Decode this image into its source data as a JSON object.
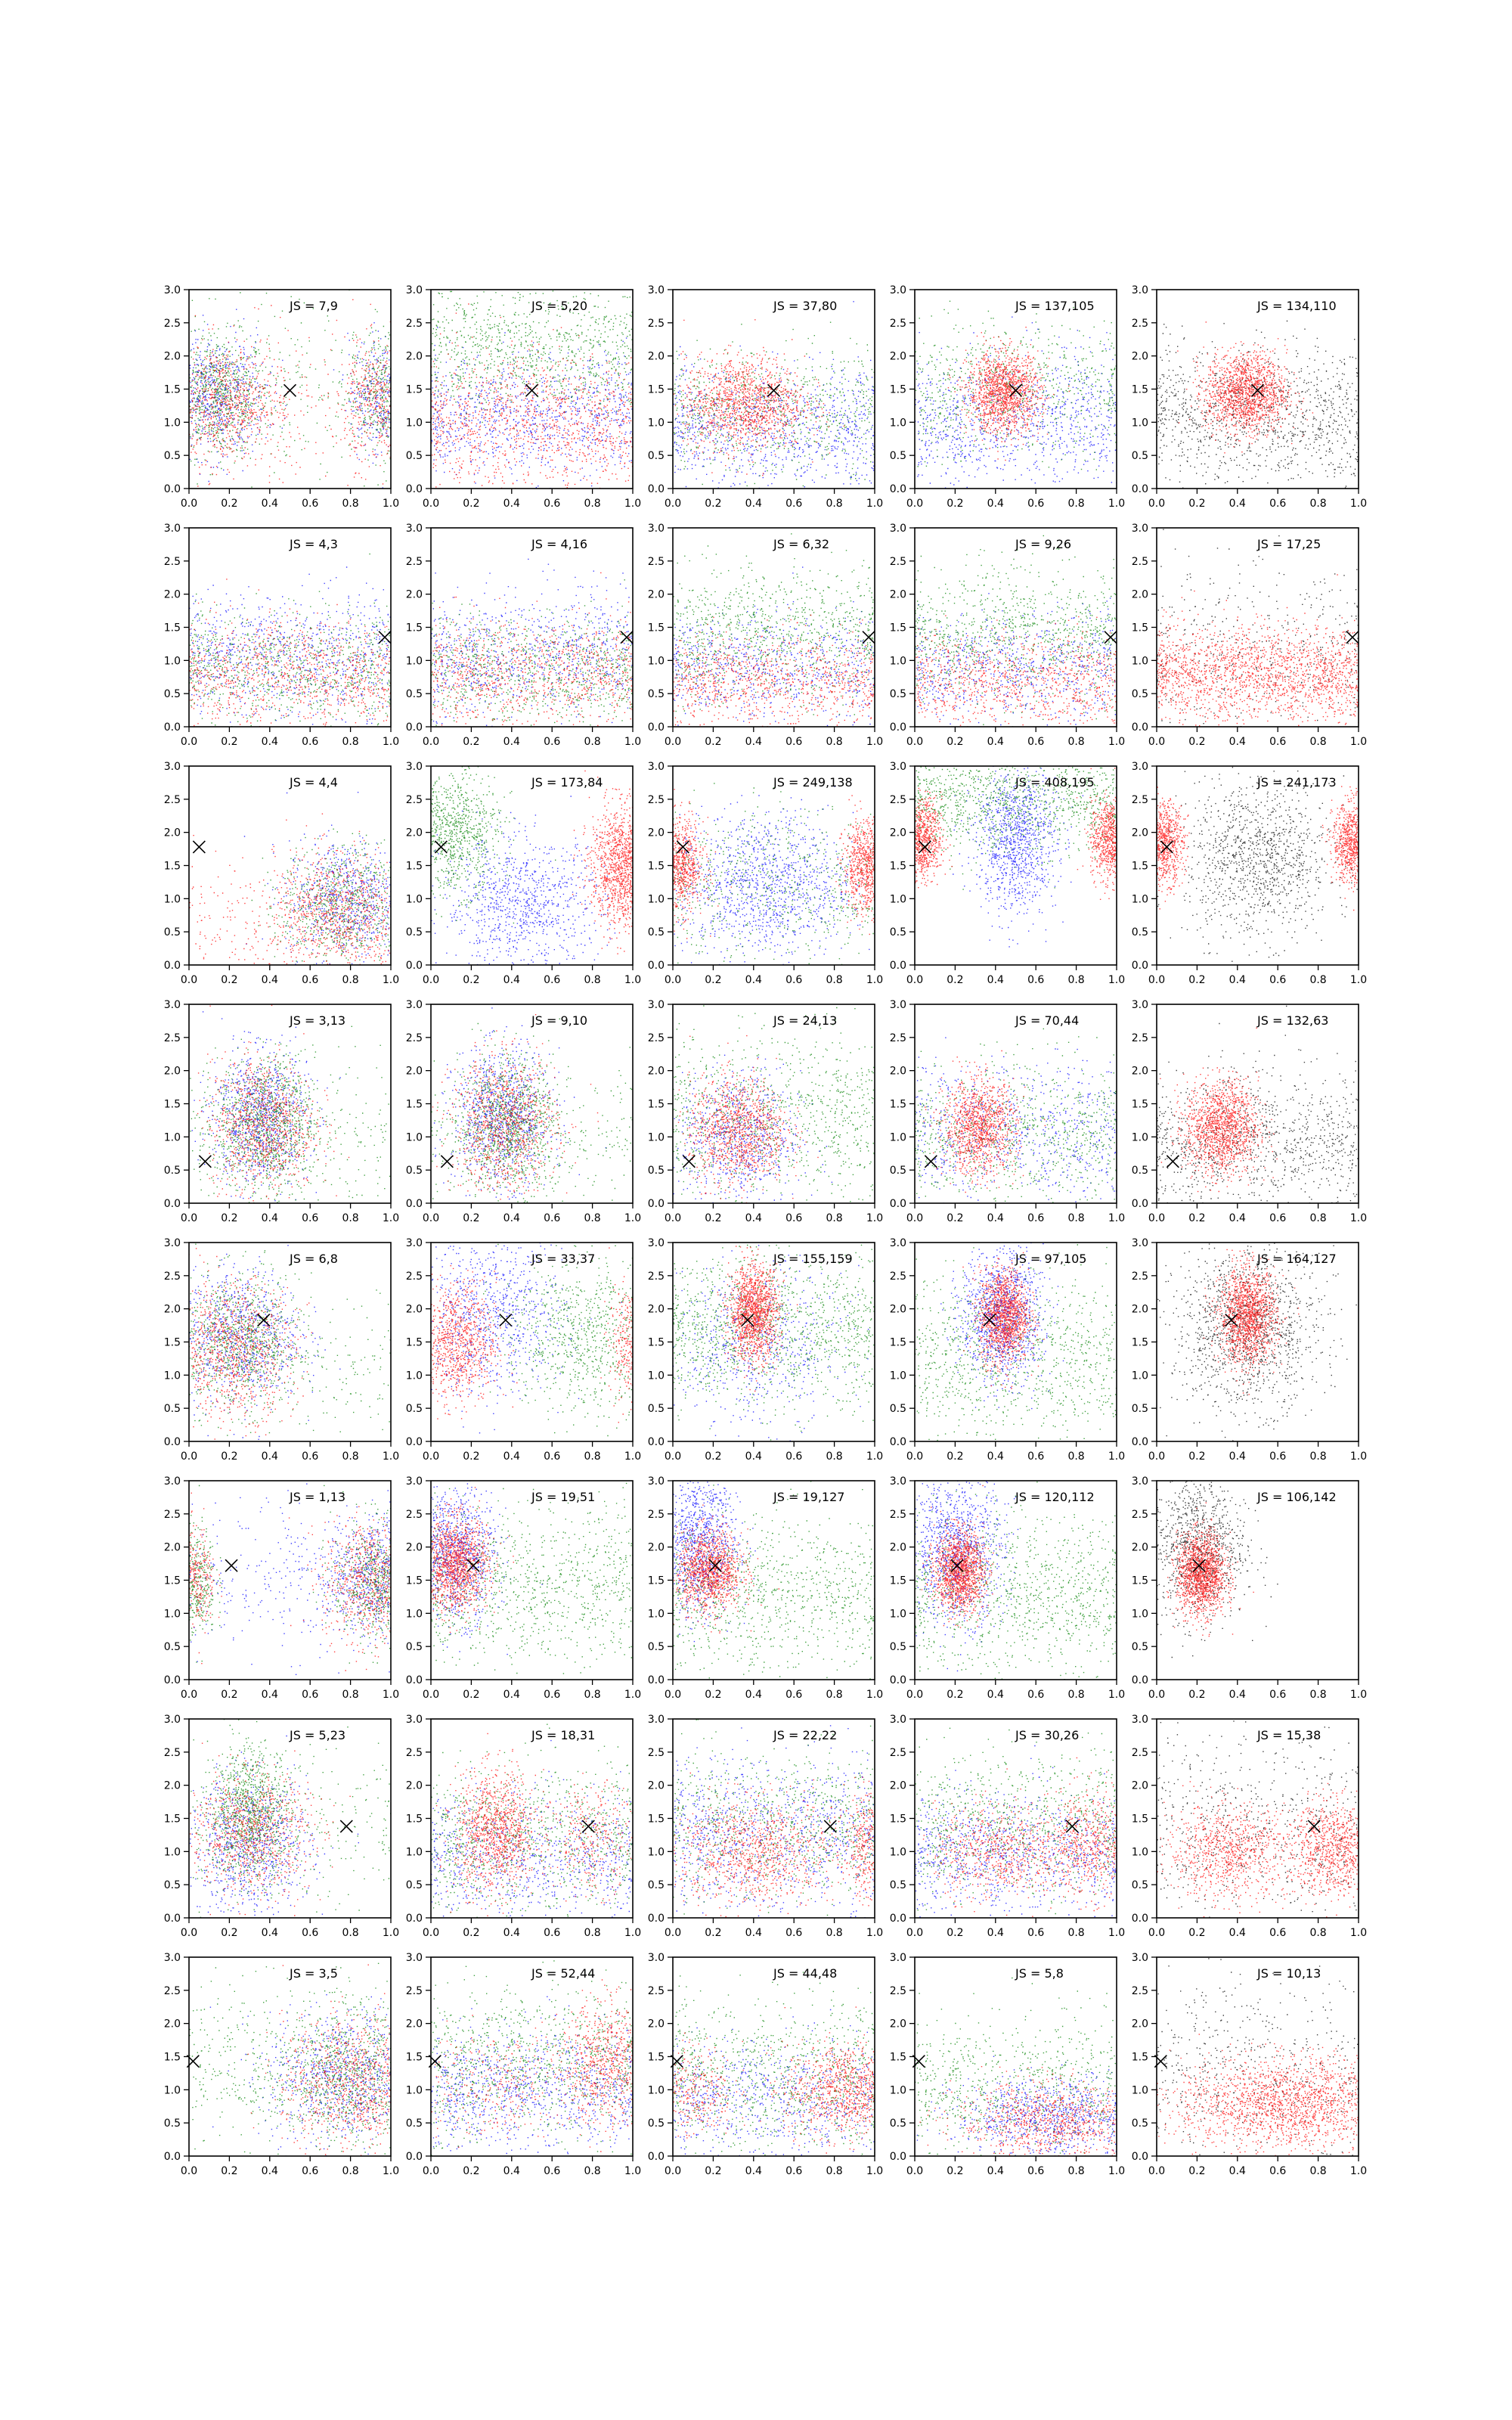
{
  "chart_data": {
    "type": "scatter",
    "layout": {
      "rows": 8,
      "cols": 5
    },
    "xlim": [
      0.0,
      1.0
    ],
    "ylim": [
      0.0,
      3.0
    ],
    "xticks": [
      "0.0",
      "0.2",
      "0.4",
      "0.6",
      "0.8",
      "1.0"
    ],
    "yticks": [
      "0.0",
      "0.5",
      "1.0",
      "1.5",
      "2.0",
      "2.5",
      "3.0"
    ],
    "grid": false,
    "marker": "x",
    "colors": {
      "red": "#ff0000",
      "green": "#008000",
      "blue": "#0000ff",
      "black": "#000000",
      "marker": "#000000",
      "axis": "#000000"
    },
    "rows": [
      {
        "marker": [
          0.5,
          1.48
        ],
        "labels": [
          "JS = 7,9",
          "JS = 5,20",
          "JS = 37,80",
          "JS = 137,105",
          "JS = 134,110"
        ],
        "profiles": [
          "mix_2lobes",
          "layered",
          "center_red",
          "center_red_strong",
          "center_red_black"
        ]
      },
      {
        "marker": [
          0.97,
          1.35
        ],
        "labels": [
          "JS = 4,3",
          "JS = 4,16",
          "JS = 6,32",
          "JS = 9,26",
          "JS = 17,25"
        ],
        "profiles": [
          "mix_low",
          "mix_low",
          "mix_low_green",
          "mix_low_green",
          "red_low_black"
        ]
      },
      {
        "marker": [
          0.05,
          1.78
        ],
        "labels": [
          "JS = 4,4",
          "JS = 173,84",
          "JS = 249,138",
          "JS = 408,195",
          "JS = 241,173"
        ],
        "profiles": [
          "mix_right",
          "edge_green",
          "edge_red_blue",
          "edge_red_blue_strong",
          "edge_red_black"
        ]
      },
      {
        "marker": [
          0.08,
          0.63
        ],
        "labels": [
          "JS = 3,13",
          "JS = 9,10",
          "JS = 24,13",
          "JS = 70,44",
          "JS = 132,63"
        ],
        "profiles": [
          "mix_lowleft",
          "mix_lowleft",
          "red_lowleft",
          "red_lowleft_strong",
          "red_lowleft_black"
        ]
      },
      {
        "marker": [
          0.37,
          1.83
        ],
        "labels": [
          "JS = 6,8",
          "JS = 33,37",
          "JS = 155,159",
          "JS = 97,105",
          "JS = 164,127"
        ],
        "profiles": [
          "mix_midleft",
          "red_left_sides",
          "red_center_tall",
          "red_center_blue",
          "red_center_black"
        ]
      },
      {
        "marker": [
          0.21,
          1.72
        ],
        "labels": [
          "JS = 1,13",
          "JS = 19,51",
          "JS = 19,127",
          "JS = 120,112",
          "JS = 106,142"
        ],
        "profiles": [
          "mix_2lobes_b",
          "red_left_blue",
          "red_left_bluetop",
          "red_left_strong",
          "red_left_black"
        ]
      },
      {
        "marker": [
          0.78,
          1.38
        ],
        "labels": [
          "JS = 5,23",
          "JS = 18,31",
          "JS = 22,22",
          "JS = 30,26",
          "JS = 15,38"
        ],
        "profiles": [
          "mix_leftgreen",
          "red_left_mid",
          "mix_red_mid",
          "mix_red_right",
          "red_spread_black"
        ]
      },
      {
        "marker": [
          0.02,
          1.43
        ],
        "labels": [
          "JS = 3,5",
          "JS = 52,44",
          "JS = 44,48",
          "JS = 5,8",
          "JS = 10,13"
        ],
        "profiles": [
          "mix_low_right",
          "mix_red_right2",
          "red_low_right",
          "mix_bottom",
          "red_bottom_black"
        ]
      }
    ]
  }
}
